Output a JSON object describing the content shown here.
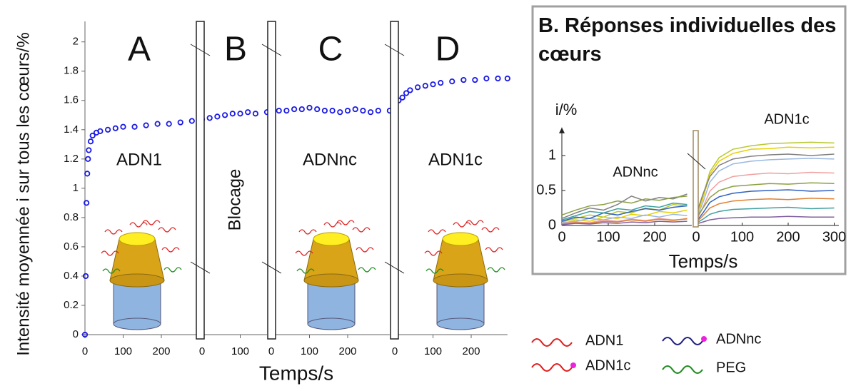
{
  "chart_data": [
    {
      "type": "line",
      "ylabel": "Intensité moyennée i sur tous les cœurs/%",
      "xlabel": "Temps/s",
      "ylim": [
        0,
        2.14
      ],
      "yticks": [
        0,
        0.2,
        0.4,
        0.6,
        0.8,
        1,
        1.2,
        1.4,
        1.6,
        1.8,
        2
      ],
      "color": "#1a1ae6",
      "panels": [
        {
          "label": "A",
          "annotation": "ADN1",
          "xlim": [
            0,
            300
          ],
          "xticks": [
            0,
            100,
            200
          ],
          "x": [
            0,
            2,
            4,
            6,
            8,
            10,
            15,
            20,
            30,
            40,
            60,
            80,
            100,
            130,
            160,
            190,
            220,
            250,
            280,
            300
          ],
          "values": [
            0,
            0.4,
            0.9,
            1.1,
            1.2,
            1.26,
            1.32,
            1.36,
            1.38,
            1.39,
            1.4,
            1.41,
            1.42,
            1.42,
            1.43,
            1.44,
            1.44,
            1.45,
            1.46,
            1.46
          ]
        },
        {
          "label": "B",
          "annotation": "Blocage",
          "xlim": [
            0,
            170
          ],
          "xticks": [
            0,
            100
          ],
          "x": [
            0,
            20,
            40,
            60,
            80,
            100,
            120,
            140,
            170
          ],
          "values": [
            1.47,
            1.48,
            1.49,
            1.5,
            1.51,
            1.51,
            1.52,
            1.51,
            1.52
          ]
        },
        {
          "label": "C",
          "annotation": "ADNnc",
          "xlim": [
            0,
            310
          ],
          "xticks": [
            0,
            100,
            200
          ],
          "x": [
            0,
            20,
            40,
            60,
            80,
            100,
            120,
            140,
            160,
            180,
            200,
            220,
            240,
            260,
            280,
            310
          ],
          "values": [
            1.52,
            1.53,
            1.53,
            1.54,
            1.54,
            1.55,
            1.54,
            1.53,
            1.53,
            1.52,
            1.53,
            1.54,
            1.53,
            1.52,
            1.53,
            1.53
          ]
        },
        {
          "label": "D",
          "annotation": "ADN1c",
          "xlim": [
            0,
            295
          ],
          "xticks": [
            0,
            100,
            200
          ],
          "x": [
            0,
            10,
            20,
            30,
            40,
            60,
            80,
            100,
            120,
            150,
            180,
            210,
            240,
            270,
            295
          ],
          "values": [
            1.57,
            1.6,
            1.62,
            1.65,
            1.67,
            1.69,
            1.7,
            1.71,
            1.72,
            1.73,
            1.74,
            1.74,
            1.75,
            1.75,
            1.75
          ]
        }
      ],
      "legend": [
        {
          "label": "ADN1",
          "color": "#e02020"
        },
        {
          "label": "ADN1c",
          "color": "#e02020",
          "dot": "#ee22dd"
        },
        {
          "label": "ADNnc",
          "color": "#202080",
          "dot": "#ee22dd"
        },
        {
          "label": "PEG",
          "color": "#1e8a1e"
        }
      ]
    },
    {
      "type": "line",
      "title": "B. Réponses individuelles des cœurs",
      "ylabel": "i/%",
      "xlabel": "Temps/s",
      "annotations": [
        "ADNnc",
        "ADN1c"
      ],
      "ylim": [
        0,
        1.4
      ],
      "yticks": [
        0,
        0.5,
        1
      ],
      "panels": [
        {
          "xlim": [
            0,
            280
          ],
          "xticks": [
            0,
            100,
            200
          ],
          "x": [
            0,
            30,
            60,
            90,
            120,
            150,
            180,
            210,
            240,
            270
          ],
          "series": [
            {
              "color": "#b8c832",
              "values": [
                0.05,
                0.1,
                0.15,
                0.12,
                0.2,
                0.18,
                0.25,
                0.22,
                0.3,
                0.28
              ]
            },
            {
              "color": "#e8d000",
              "values": [
                0.02,
                0.08,
                0.06,
                0.12,
                0.1,
                0.16,
                0.14,
                0.2,
                0.18,
                0.22
              ]
            },
            {
              "color": "#808080",
              "values": [
                0.1,
                0.18,
                0.25,
                0.22,
                0.3,
                0.42,
                0.35,
                0.4,
                0.38,
                0.45
              ]
            },
            {
              "color": "#9ab8e0",
              "values": [
                0.04,
                0.06,
                0.1,
                0.08,
                0.12,
                0.1,
                0.15,
                0.12,
                0.16,
                0.14
              ]
            },
            {
              "color": "#f0a0a0",
              "values": [
                0.03,
                0.05,
                0.04,
                0.08,
                0.06,
                0.09,
                0.07,
                0.1,
                0.08,
                0.09
              ]
            },
            {
              "color": "#8aa040",
              "values": [
                0.15,
                0.22,
                0.28,
                0.3,
                0.35,
                0.32,
                0.38,
                0.36,
                0.4,
                0.42
              ]
            },
            {
              "color": "#3060c0",
              "values": [
                0.06,
                0.12,
                0.1,
                0.18,
                0.15,
                0.2,
                0.24,
                0.22,
                0.26,
                0.28
              ]
            },
            {
              "color": "#e08030",
              "values": [
                0.02,
                0.04,
                0.03,
                0.06,
                0.05,
                0.08,
                0.06,
                0.09,
                0.07,
                0.1
              ]
            },
            {
              "color": "#40a0a0",
              "values": [
                0.08,
                0.14,
                0.2,
                0.18,
                0.24,
                0.22,
                0.28,
                0.26,
                0.32,
                0.3
              ]
            },
            {
              "color": "#8060a0",
              "values": [
                0.01,
                0.03,
                0.02,
                0.04,
                0.03,
                0.05,
                0.04,
                0.06,
                0.05,
                0.06
              ]
            }
          ]
        },
        {
          "xlim": [
            0,
            310
          ],
          "xticks": [
            0,
            100,
            200,
            300
          ],
          "x": [
            0,
            15,
            30,
            50,
            80,
            120,
            160,
            200,
            250,
            300
          ],
          "series": [
            {
              "color": "#b8c832",
              "values": [
                0.12,
                0.42,
                0.77,
                0.97,
                1.09,
                1.14,
                1.17,
                1.18,
                1.19,
                1.18
              ]
            },
            {
              "color": "#e8d000",
              "values": [
                0.1,
                0.39,
                0.73,
                0.92,
                1.03,
                1.09,
                1.1,
                1.12,
                1.11,
                1.12
              ]
            },
            {
              "color": "#808080",
              "values": [
                0.15,
                0.45,
                0.7,
                0.86,
                0.95,
                0.99,
                1.01,
                1.02,
                1,
                1.02
              ]
            },
            {
              "color": "#9ab8e0",
              "values": [
                0.08,
                0.33,
                0.62,
                0.78,
                0.88,
                0.92,
                0.94,
                0.95,
                0.96,
                0.95
              ]
            },
            {
              "color": "#f0a0a0",
              "values": [
                0.06,
                0.26,
                0.49,
                0.62,
                0.7,
                0.73,
                0.75,
                0.74,
                0.76,
                0.75
              ]
            },
            {
              "color": "#8aa040",
              "values": [
                0.1,
                0.25,
                0.4,
                0.5,
                0.56,
                0.58,
                0.6,
                0.59,
                0.61,
                0.6
              ]
            },
            {
              "color": "#3060c0",
              "values": [
                0.05,
                0.18,
                0.33,
                0.41,
                0.46,
                0.49,
                0.5,
                0.51,
                0.49,
                0.5
              ]
            },
            {
              "color": "#e08030",
              "values": [
                0.04,
                0.14,
                0.25,
                0.31,
                0.35,
                0.37,
                0.38,
                0.37,
                0.39,
                0.38
              ]
            },
            {
              "color": "#40a0a0",
              "values": [
                0.03,
                0.09,
                0.16,
                0.2,
                0.23,
                0.24,
                0.25,
                0.26,
                0.24,
                0.25
              ]
            },
            {
              "color": "#8060a0",
              "values": [
                0.02,
                0.05,
                0.08,
                0.1,
                0.11,
                0.12,
                0.12,
                0.13,
                0.12,
                0.12
              ]
            }
          ]
        }
      ]
    }
  ]
}
